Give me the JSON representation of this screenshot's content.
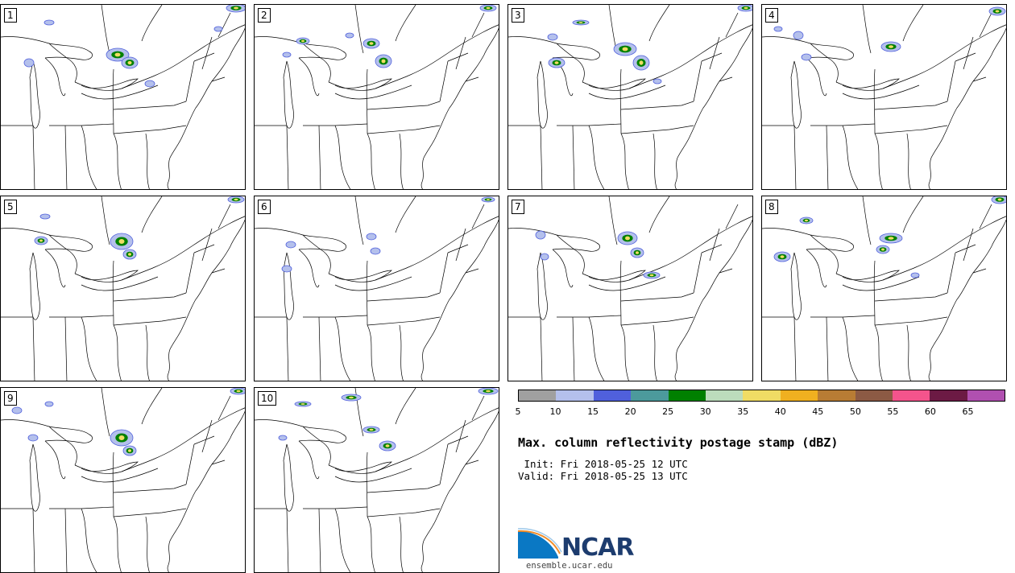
{
  "panels": [
    {
      "label": "1"
    },
    {
      "label": "2"
    },
    {
      "label": "3"
    },
    {
      "label": "4"
    },
    {
      "label": "5"
    },
    {
      "label": "6"
    },
    {
      "label": "7"
    },
    {
      "label": "8"
    },
    {
      "label": "9"
    },
    {
      "label": "10"
    }
  ],
  "colorbar": {
    "colors": [
      "#a0a0a0",
      "#b4c0ec",
      "#5060dc",
      "#4c9a9c",
      "#008000",
      "#bcdcbc",
      "#f0dc64",
      "#f0b020",
      "#b87c34",
      "#8c5a44",
      "#f4548c",
      "#6c1a44",
      "#b050b0"
    ],
    "ticks": [
      "5",
      "10",
      "15",
      "20",
      "25",
      "30",
      "35",
      "40",
      "45",
      "50",
      "55",
      "60",
      "65"
    ]
  },
  "title": "Max. column reflectivity postage stamp (dBZ)",
  "init_line": " Init: Fri 2018-05-25 12 UTC",
  "valid_line": "Valid: Fri 2018-05-25 13 UTC",
  "logo": {
    "text": "NCAR",
    "colors": {
      "blue": "#0a78c4",
      "navy": "#1d3c6e",
      "orange": "#f08c28"
    }
  },
  "site": "ensemble.ucar.edu"
}
